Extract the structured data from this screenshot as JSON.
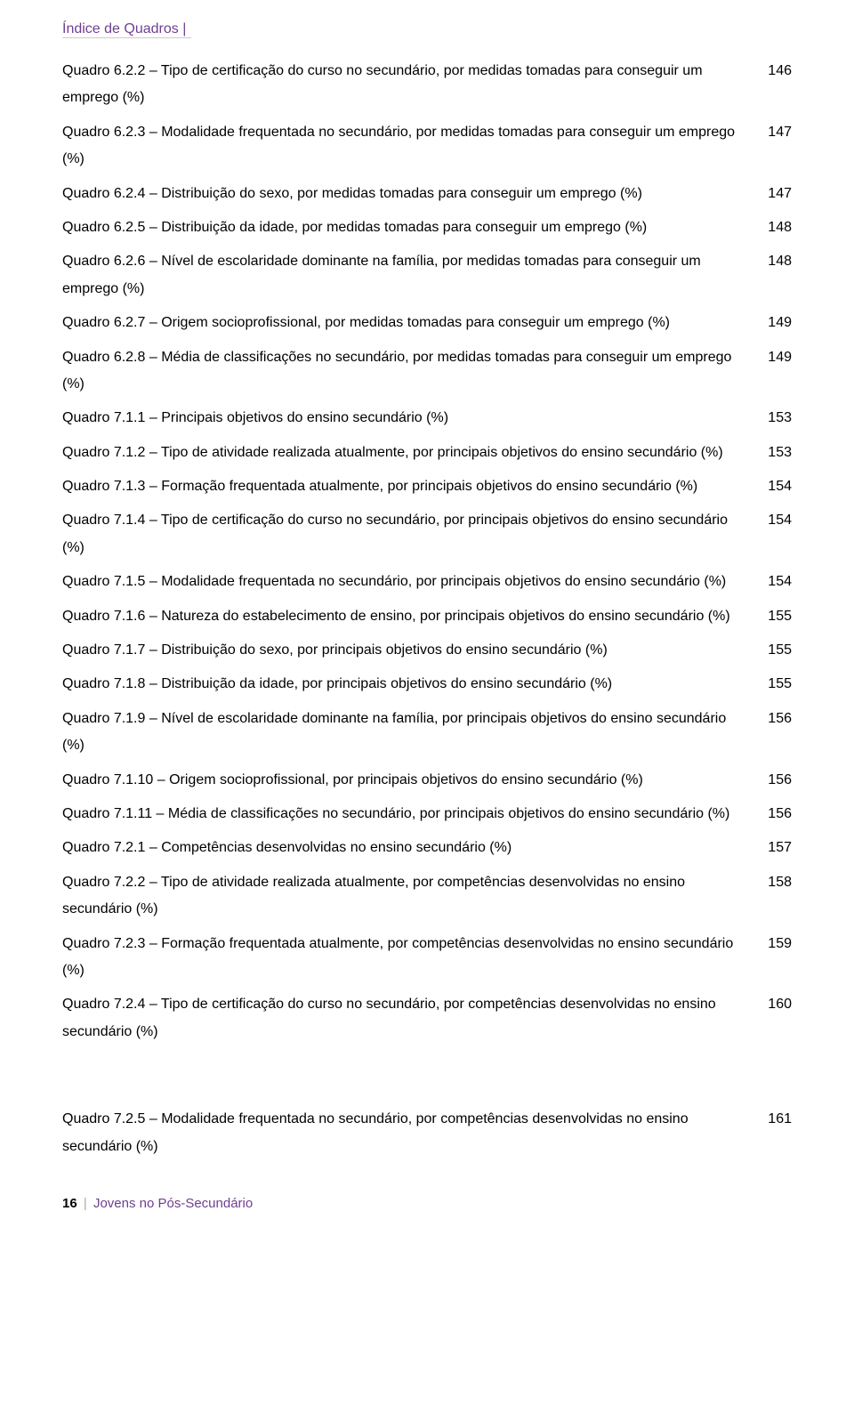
{
  "header": {
    "title": "Índice de Quadros |"
  },
  "toc": {
    "group1": [
      {
        "label": "Quadro 6.2.2 – Tipo de certificação do curso no secundário, por medidas tomadas para conseguir um emprego (%)",
        "page": "146"
      },
      {
        "label": "Quadro 6.2.3 – Modalidade frequentada no secundário, por medidas tomadas para conseguir um emprego (%)",
        "page": "147"
      },
      {
        "label": "Quadro 6.2.4 – Distribuição do sexo, por medidas tomadas para conseguir um emprego (%)",
        "page": "147"
      },
      {
        "label": "Quadro 6.2.5 – Distribuição da idade, por medidas tomadas para conseguir um emprego (%)",
        "page": "148"
      },
      {
        "label": "Quadro 6.2.6 – Nível de escolaridade dominante na família, por medidas tomadas para conseguir um emprego (%)",
        "page": "148"
      },
      {
        "label": "Quadro 6.2.7 – Origem socioprofissional, por medidas tomadas para conseguir um emprego (%)",
        "page": "149"
      },
      {
        "label": "Quadro 6.2.8 – Média de classificações no secundário, por medidas tomadas para conseguir um emprego (%)",
        "page": "149"
      },
      {
        "label": "Quadro 7.1.1 – Principais objetivos do ensino secundário (%)",
        "page": "153"
      },
      {
        "label": "Quadro 7.1.2 – Tipo de atividade realizada atualmente, por principais objetivos do ensino secundário (%)",
        "page": "153"
      },
      {
        "label": "Quadro 7.1.3 – Formação frequentada atualmente, por principais objetivos do ensino secundário (%)",
        "page": "154"
      },
      {
        "label": "Quadro 7.1.4 – Tipo de certificação do curso no secundário, por principais objetivos do ensino secundário (%)",
        "page": "154"
      },
      {
        "label": "Quadro 7.1.5 – Modalidade frequentada no secundário, por principais objetivos do ensino secundário (%)",
        "page": "154"
      },
      {
        "label": "Quadro 7.1.6 – Natureza do estabelecimento de ensino, por principais objetivos do ensino secundário (%)",
        "page": "155"
      },
      {
        "label": "Quadro 7.1.7 – Distribuição do sexo, por principais objetivos do ensino secundário (%)",
        "page": "155"
      },
      {
        "label": "Quadro 7.1.8 – Distribuição da idade, por principais objetivos do ensino secundário (%)",
        "page": "155"
      },
      {
        "label": "Quadro 7.1.9 – Nível de escolaridade dominante na família, por principais objetivos do ensino secundário (%)",
        "page": "156"
      },
      {
        "label": "Quadro 7.1.10 – Origem socioprofissional, por principais objetivos do ensino secundário (%)",
        "page": "156"
      },
      {
        "label": "Quadro 7.1.11 – Média de classificações no secundário, por principais objetivos do ensino secundário (%)",
        "page": "156"
      },
      {
        "label": "Quadro 7.2.1 – Competências desenvolvidas no ensino secundário (%)",
        "page": "157"
      },
      {
        "label": "Quadro 7.2.2 – Tipo de atividade realizada atualmente, por competências desenvolvidas no ensino secundário (%)",
        "page": "158"
      },
      {
        "label": "Quadro 7.2.3 – Formação frequentada atualmente, por competências desenvolvidas no ensino secundário (%)",
        "page": "159"
      },
      {
        "label": "Quadro 7.2.4 – Tipo de certificação do curso no secundário, por competências desenvolvidas no ensino secundário (%)",
        "page": "160"
      }
    ],
    "group2": [
      {
        "label": "Quadro 7.2.5 – Modalidade frequentada no secundário, por competências desenvolvidas no ensino secundário (%)",
        "page": "161"
      }
    ]
  },
  "footer": {
    "page_number": "16",
    "sep": "|",
    "title": "Jovens no Pós-Secundário"
  }
}
